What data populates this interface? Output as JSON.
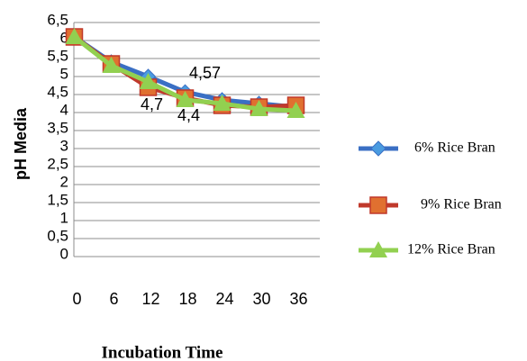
{
  "chart_data": {
    "type": "line",
    "x_label": "Incubation Time",
    "y_label": "pH Media",
    "categories": [
      "0",
      "6",
      "12",
      "18",
      "24",
      "30",
      "36"
    ],
    "series": [
      {
        "name": "6% Rice Bran",
        "color": "#3a6fc4",
        "marker": "diamond",
        "values": [
          6.1,
          5.4,
          5.0,
          4.57,
          4.35,
          4.25,
          4.15
        ],
        "value_labels": [
          null,
          null,
          null,
          "4,57",
          null,
          null,
          null
        ]
      },
      {
        "name": "9% Rice Bran",
        "color": "#c0392b",
        "marker": "square",
        "values": [
          6.1,
          5.35,
          4.7,
          4.4,
          4.2,
          4.15,
          4.2
        ],
        "value_labels": [
          null,
          null,
          "4,7",
          "4,4",
          null,
          null,
          null
        ]
      },
      {
        "name": "12% Rice Bran",
        "color": "#92d050",
        "marker": "triangle",
        "values": [
          6.1,
          5.3,
          4.85,
          4.35,
          4.25,
          4.1,
          4.05
        ]
      }
    ],
    "ylim": [
      0,
      6.5
    ],
    "yticks": [
      0,
      {
        "value": 0.5,
        "label": "0,5"
      },
      1,
      {
        "value": 1.5,
        "label": "1,5"
      },
      2,
      {
        "value": 2.5,
        "label": "2,5"
      },
      3,
      {
        "value": 3.5,
        "label": "3,5"
      },
      4,
      {
        "value": 4.5,
        "label": "4,5"
      },
      5,
      {
        "value": 5.5,
        "label": "5,5"
      },
      6,
      {
        "value": 6.5,
        "label": "6,5"
      }
    ],
    "grid": true
  }
}
